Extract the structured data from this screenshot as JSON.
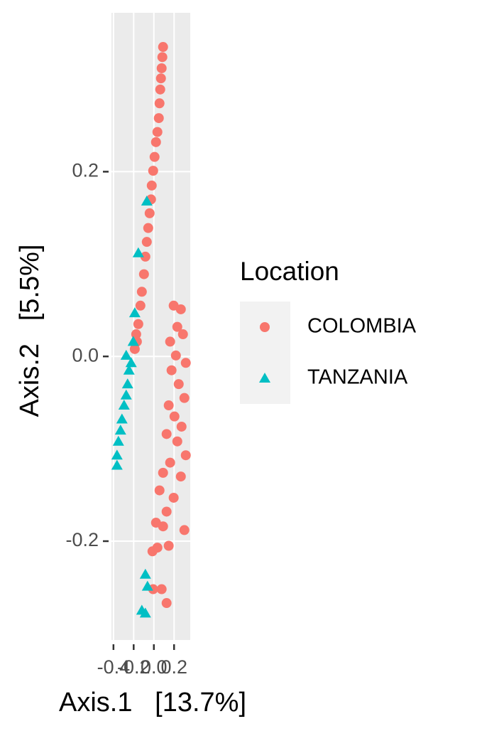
{
  "chart_data": {
    "type": "scatter",
    "x_label": "Axis.1   [13.7%]",
    "y_label": "Axis.2   [5.5%]",
    "legend_title": "Location",
    "xlim": [
      -0.42,
      0.36
    ],
    "ylim": [
      -0.307,
      0.372
    ],
    "xticks": [
      -0.4,
      -0.2,
      {
        "value": 0,
        "label": "0.0"
      },
      0.2
    ],
    "yticks": [
      -0.2,
      {
        "value": 0,
        "label": "0.0"
      },
      0.2
    ],
    "grid": true,
    "legend_position": "right",
    "series": [
      {
        "name": "COLOMBIA",
        "color": "#f8766d",
        "marker": "circle",
        "x": [
          -0.189,
          -0.175,
          -0.168,
          -0.154,
          -0.133,
          -0.119,
          -0.098,
          -0.084,
          -0.07,
          -0.056,
          -0.042,
          -0.028,
          -0.021,
          -0.007,
          0.007,
          0.021,
          0.035,
          0.049,
          0.056,
          0.063,
          0.07,
          0.077,
          0.084,
          0.091,
          0.196,
          0.267,
          0.232,
          0.288,
          0.161,
          0.218,
          0.316,
          0.175,
          0.246,
          0.302,
          0.147,
          0.204,
          0.274,
          0.126,
          0.232,
          0.316,
          0.161,
          0.091,
          0.267,
          0.056,
          0.196,
          0.126,
          0.021,
          0.302,
          0.091,
          -0.014,
          0.035,
          0.147,
          -0.007,
          0.077,
          0.126
        ],
        "values": [
          0.008,
          0.024,
          0.016,
          0.035,
          0.055,
          0.07,
          0.089,
          0.108,
          0.124,
          0.139,
          0.155,
          0.17,
          0.185,
          0.201,
          0.216,
          0.232,
          0.243,
          0.258,
          0.274,
          0.289,
          0.301,
          0.312,
          0.324,
          0.335,
          0.055,
          0.051,
          0.032,
          0.024,
          0.016,
          0.001,
          -0.007,
          -0.015,
          -0.03,
          -0.045,
          -0.053,
          -0.065,
          -0.076,
          -0.084,
          -0.092,
          -0.107,
          -0.115,
          -0.126,
          -0.13,
          -0.145,
          -0.153,
          -0.168,
          -0.18,
          -0.188,
          -0.184,
          -0.211,
          -0.207,
          -0.205,
          -0.252,
          -0.252,
          -0.267
        ]
      },
      {
        "name": "TANZANIA",
        "color": "#00bfc4",
        "marker": "triangle",
        "x": [
          -0.365,
          -0.365,
          -0.351,
          -0.33,
          -0.316,
          -0.295,
          -0.274,
          -0.26,
          -0.246,
          -0.225,
          -0.274,
          -0.204,
          -0.189,
          -0.154,
          -0.07,
          -0.084,
          -0.063,
          -0.119,
          -0.084
        ],
        "values": [
          -0.118,
          -0.107,
          -0.092,
          -0.08,
          -0.068,
          -0.053,
          -0.042,
          -0.03,
          -0.015,
          -0.007,
          0.001,
          0.016,
          0.047,
          0.112,
          0.168,
          -0.236,
          -0.249,
          -0.275,
          -0.278
        ]
      }
    ]
  }
}
